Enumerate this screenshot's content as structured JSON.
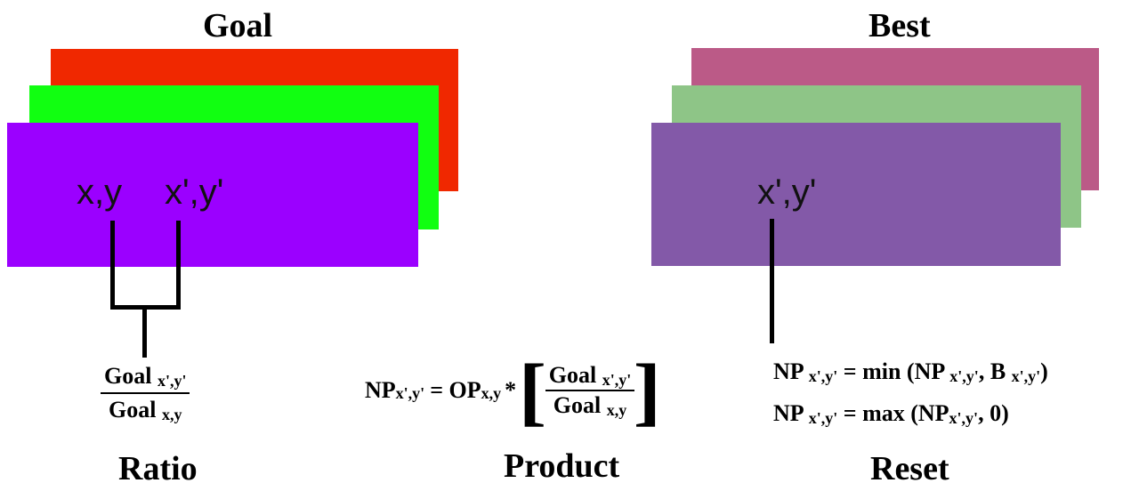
{
  "colors": {
    "goal_back": "#f02800",
    "goal_mid": "#11ff11",
    "goal_front": "#9b00ff",
    "best_back": "#bb5a87",
    "best_mid": "#8ec587",
    "best_front": "#8359a8"
  },
  "left": {
    "title": "Goal",
    "coord_1": "x,y",
    "coord_2": "x',y'",
    "ratio_num_word": "Goal",
    "ratio_num_sub": "x',y'",
    "ratio_den_word": "Goal",
    "ratio_den_sub": "x,y",
    "caption": "Ratio"
  },
  "middle": {
    "lhs": "NP",
    "lhs_sub": "x',y'",
    "eq": "= OP",
    "op_sub": "x,y",
    "times": "*",
    "num_word": "Goal",
    "num_sub": "x',y'",
    "den_word": "Goal",
    "den_sub": "x,y",
    "caption": "Product"
  },
  "right": {
    "title": "Best",
    "coord": "x',y'",
    "eq1_lhs": "NP",
    "eq1_lhs_sub": "x',y'",
    "eq1_mid": "= min (NP",
    "eq1_arg_sub": "x',y'",
    "eq1_b": ", B",
    "eq1_b_sub": "x',y'",
    "eq1_end": ")",
    "eq2_lhs": "NP",
    "eq2_lhs_sub": "x',y'",
    "eq2_mid": "= max (NP",
    "eq2_arg_sub": "x',y'",
    "eq2_end": ", 0)",
    "caption": "Reset"
  }
}
